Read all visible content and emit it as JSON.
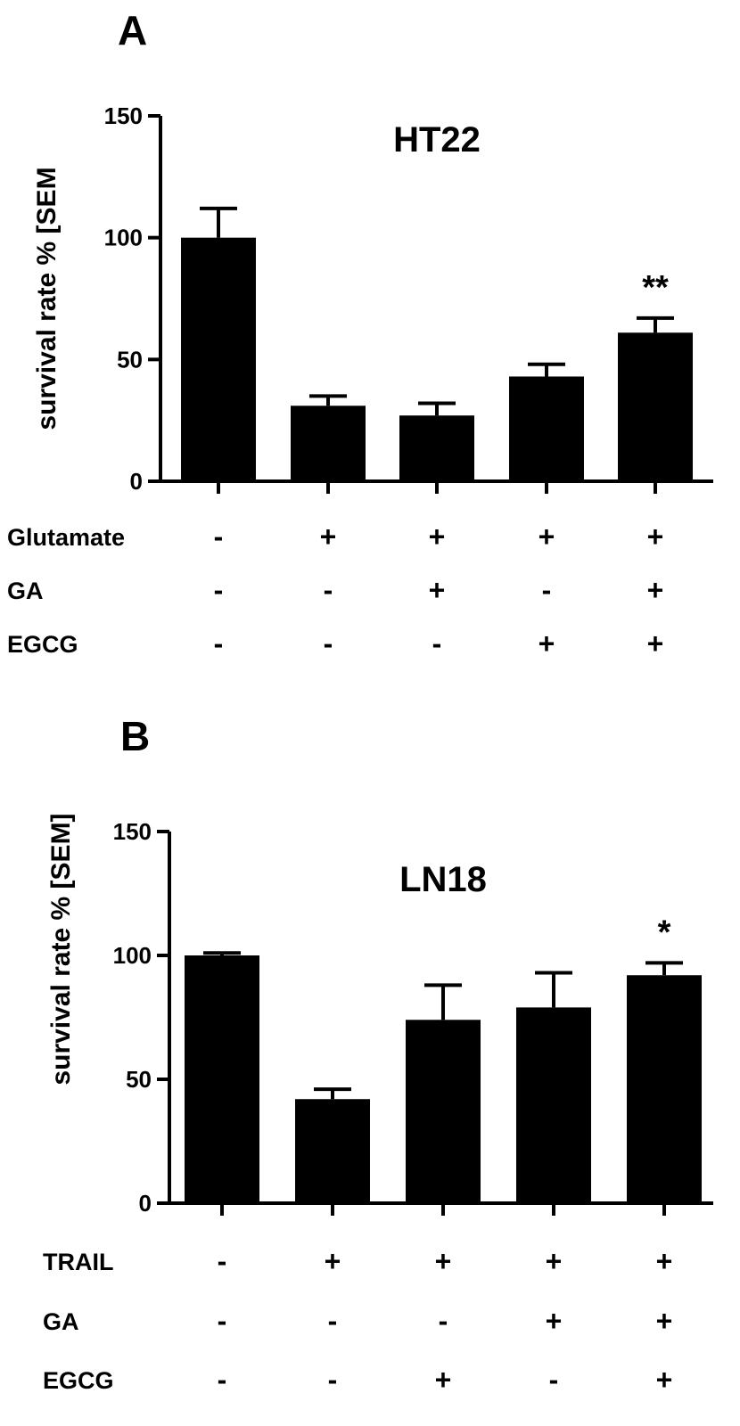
{
  "chart_data": [
    {
      "type": "bar",
      "panel": "A",
      "title": "HT22",
      "ylabel": "survival rate % [SEM",
      "ylim": [
        0,
        150
      ],
      "yticks": [
        0,
        50,
        100,
        150
      ],
      "values": [
        100,
        31,
        27,
        43,
        61
      ],
      "errors": [
        12,
        4,
        5,
        5,
        6
      ],
      "significance": [
        "",
        "",
        "",
        "",
        "**"
      ],
      "conditions": [
        {
          "label": "Glutamate",
          "signs": [
            "-",
            "+",
            "+",
            "+",
            "+"
          ]
        },
        {
          "label": "GA",
          "signs": [
            "-",
            "-",
            "+",
            "-",
            "+"
          ]
        },
        {
          "label": "EGCG",
          "signs": [
            "-",
            "-",
            "-",
            "+",
            "+"
          ]
        }
      ]
    },
    {
      "type": "bar",
      "panel": "B",
      "title": "LN18",
      "ylabel": "survival rate % [SEM]",
      "ylim": [
        0,
        150
      ],
      "yticks": [
        0,
        50,
        100,
        150
      ],
      "values": [
        100,
        42,
        74,
        79,
        92
      ],
      "errors": [
        1,
        4,
        14,
        14,
        5
      ],
      "significance": [
        "",
        "",
        "",
        "",
        "*"
      ],
      "conditions": [
        {
          "label": "TRAIL",
          "signs": [
            "-",
            "+",
            "+",
            "+",
            "+"
          ]
        },
        {
          "label": "GA",
          "signs": [
            "-",
            "-",
            "-",
            "+",
            "+"
          ]
        },
        {
          "label": "EGCG",
          "signs": [
            "-",
            "-",
            "+",
            "-",
            "+"
          ]
        }
      ]
    }
  ]
}
